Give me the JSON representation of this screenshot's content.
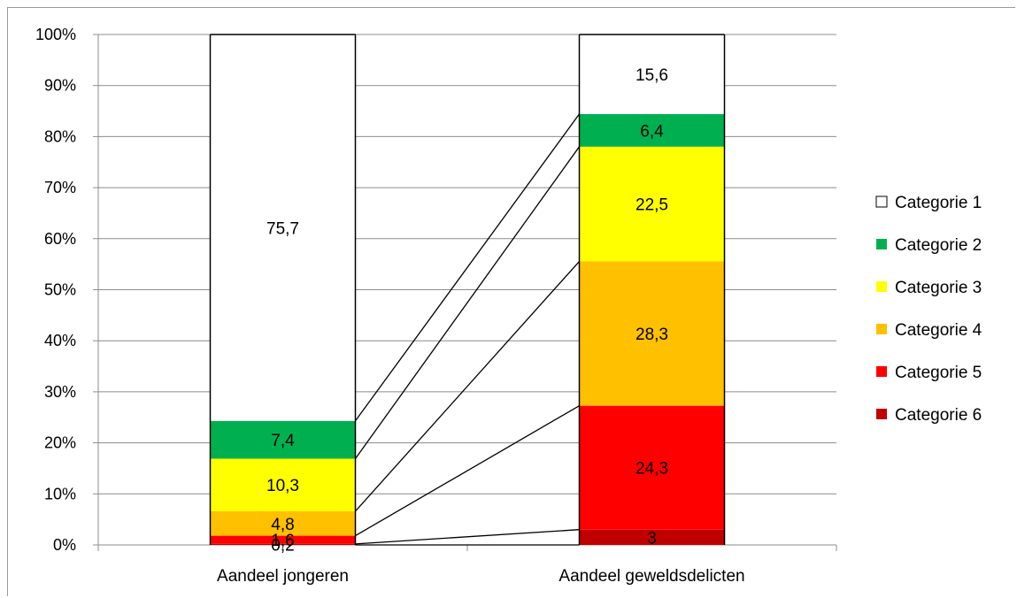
{
  "chart_data": {
    "type": "bar",
    "stacked": true,
    "percent_stacked": true,
    "categories": [
      "Aandeel jongeren",
      "Aandeel geweldsdelicten"
    ],
    "series": [
      {
        "name": "Categorie 1",
        "values": [
          75.7,
          15.6
        ],
        "color": "#ffffff"
      },
      {
        "name": "Categorie 2",
        "values": [
          7.4,
          6.4
        ],
        "color": "#00b050"
      },
      {
        "name": "Categorie 3",
        "values": [
          10.3,
          22.5
        ],
        "color": "#ffff00"
      },
      {
        "name": "Categorie 4",
        "values": [
          4.8,
          28.3
        ],
        "color": "#ffc000"
      },
      {
        "name": "Categorie 5",
        "values": [
          1.6,
          24.3
        ],
        "color": "#ff0000"
      },
      {
        "name": "Categorie 6",
        "values": [
          0.2,
          3
        ],
        "color": "#c00000"
      }
    ],
    "data_labels": [
      [
        "75,7",
        "7,4",
        "10,3",
        "4,8",
        "1,6",
        "0,2"
      ],
      [
        "15,6",
        "6,4",
        "22,5",
        "28,3",
        "24,3",
        "3"
      ]
    ],
    "y_ticks": [
      "0%",
      "10%",
      "20%",
      "30%",
      "40%",
      "50%",
      "60%",
      "70%",
      "80%",
      "90%",
      "100%"
    ],
    "ylim": [
      0,
      100
    ],
    "grid": true,
    "legend_position": "right",
    "series_lines": true
  }
}
